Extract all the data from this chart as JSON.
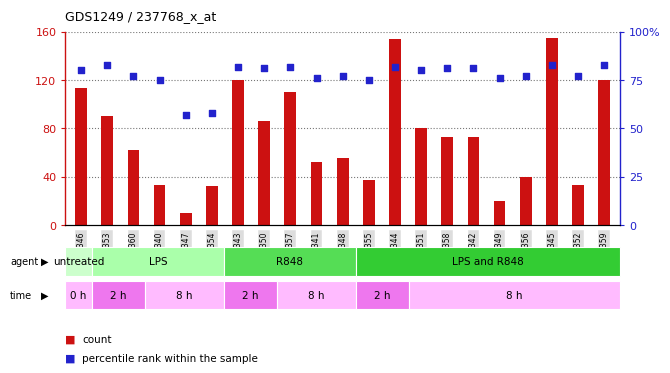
{
  "title": "GDS1249 / 237768_x_at",
  "samples": [
    "GSM52346",
    "GSM52353",
    "GSM52360",
    "GSM52340",
    "GSM52347",
    "GSM52354",
    "GSM52343",
    "GSM52350",
    "GSM52357",
    "GSM52341",
    "GSM52348",
    "GSM52355",
    "GSM52344",
    "GSM52351",
    "GSM52358",
    "GSM52342",
    "GSM52349",
    "GSM52356",
    "GSM52345",
    "GSM52352",
    "GSM52359"
  ],
  "counts": [
    113,
    90,
    62,
    33,
    10,
    32,
    120,
    86,
    110,
    52,
    55,
    37,
    154,
    80,
    73,
    73,
    20,
    40,
    155,
    33,
    120
  ],
  "percentiles": [
    80,
    83,
    77,
    75,
    57,
    58,
    82,
    81,
    82,
    76,
    77,
    75,
    82,
    80,
    81,
    81,
    76,
    77,
    83,
    77,
    83
  ],
  "agent_groups": [
    {
      "label": "untreated",
      "start": 0,
      "end": 1
    },
    {
      "label": "LPS",
      "start": 1,
      "end": 6
    },
    {
      "label": "R848",
      "start": 6,
      "end": 11
    },
    {
      "label": "LPS and R848",
      "start": 11,
      "end": 21
    }
  ],
  "agent_colors": [
    "#ccffcc",
    "#aaffaa",
    "#55dd55",
    "#33cc33"
  ],
  "time_groups": [
    {
      "label": "0 h",
      "start": 0,
      "end": 1
    },
    {
      "label": "2 h",
      "start": 1,
      "end": 3
    },
    {
      "label": "8 h",
      "start": 3,
      "end": 6
    },
    {
      "label": "2 h",
      "start": 6,
      "end": 8
    },
    {
      "label": "8 h",
      "start": 8,
      "end": 11
    },
    {
      "label": "2 h",
      "start": 11,
      "end": 13
    },
    {
      "label": "8 h",
      "start": 13,
      "end": 21
    }
  ],
  "time_colors": [
    "#ffbbff",
    "#ee77ee",
    "#ffbbff",
    "#ee77ee",
    "#ffbbff",
    "#ee77ee",
    "#ffbbff"
  ],
  "ylim_left": [
    0,
    160
  ],
  "ylim_right": [
    0,
    100
  ],
  "yticks_left": [
    0,
    40,
    80,
    120,
    160
  ],
  "ytick_labels_left": [
    "0",
    "40",
    "80",
    "120",
    "160"
  ],
  "yticks_right": [
    0,
    25,
    50,
    75,
    100
  ],
  "ytick_labels_right": [
    "0",
    "25",
    "50",
    "75",
    "100%"
  ],
  "bar_color": "#cc1111",
  "dot_color": "#2222cc",
  "background_color": "#ffffff",
  "grid_color": "#777777",
  "xlabel_bg": "#dddddd"
}
